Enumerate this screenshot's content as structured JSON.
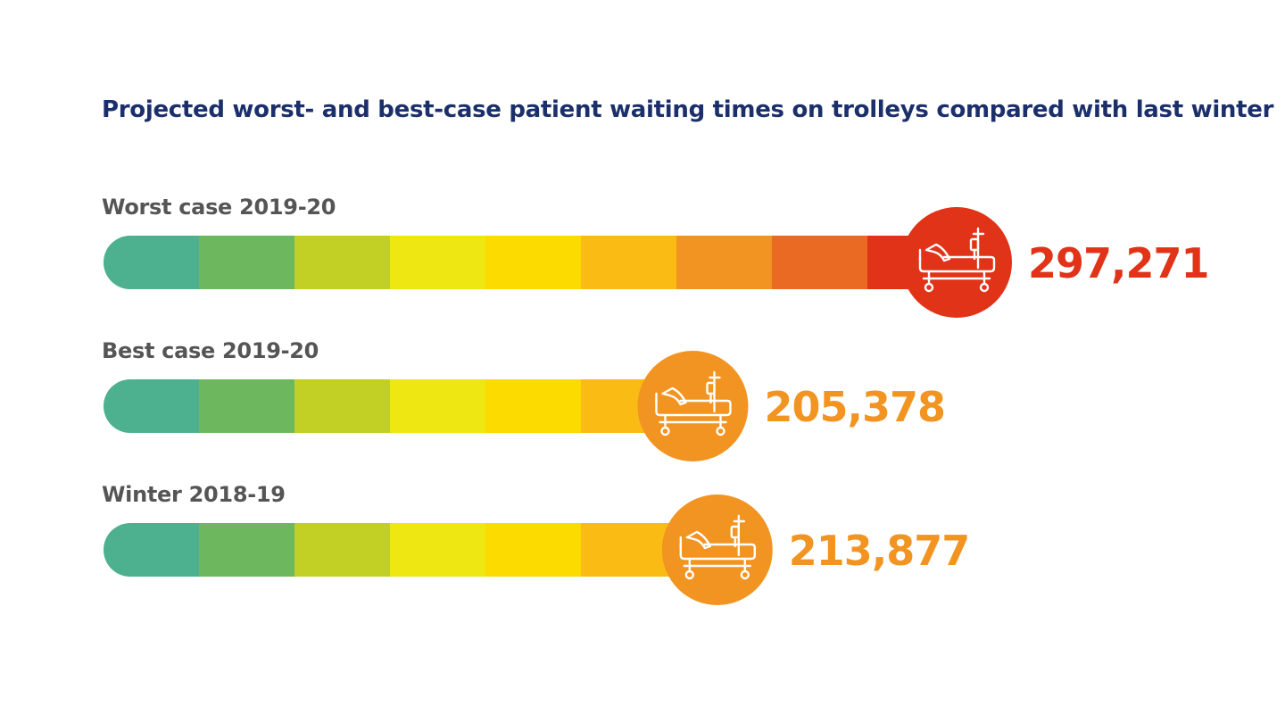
{
  "title": "Projected worst- and best-case patient waiting times on trolleys compared with last winter",
  "colors": {
    "title": "#1b2f6b",
    "label": "#555555",
    "segments": [
      "#4db08e",
      "#6db85f",
      "#c2cf25",
      "#eee712",
      "#fbdb00",
      "#f9bb14",
      "#f29421",
      "#ea6a23",
      "#e03318"
    ],
    "worst": "#e03318",
    "best": "#f29421"
  },
  "chart_data": {
    "type": "bar",
    "orientation": "horizontal",
    "title": "Projected worst- and best-case patient waiting times on trolleys compared with last winter",
    "categories": [
      "Worst case 2019-20",
      "Best case 2019-20",
      "Winter 2018-19"
    ],
    "values": [
      297271,
      205378,
      213877
    ],
    "value_labels": [
      "297,271",
      "205,378",
      "213,877"
    ],
    "icon": "hospital-trolley-icon",
    "marker_colors": [
      "#e03318",
      "#f29421",
      "#f29421"
    ],
    "xlim": [
      0,
      297271
    ],
    "grid": false,
    "legend": "none"
  }
}
